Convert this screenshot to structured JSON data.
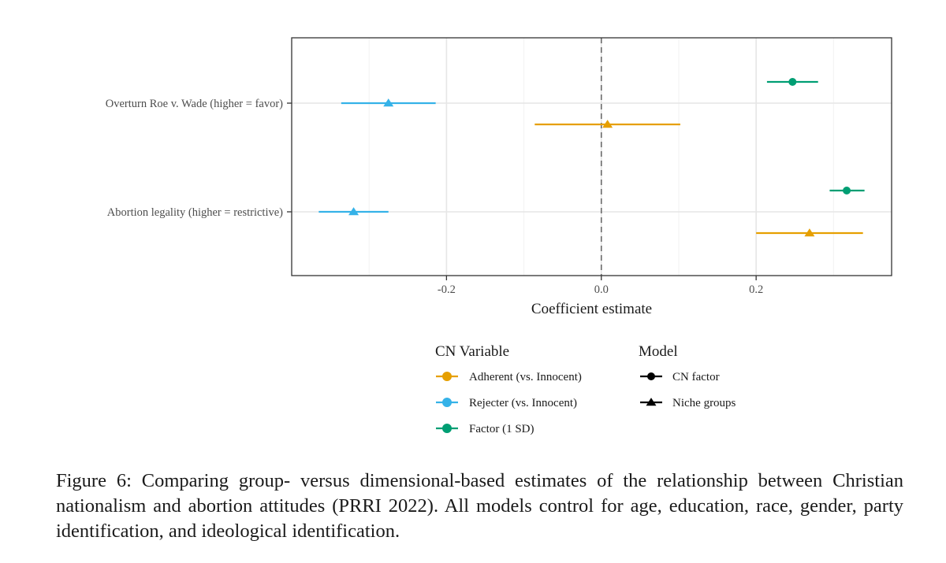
{
  "chart_data": {
    "type": "scatter",
    "subtype": "coefficient-plot",
    "xlabel": "Coefficient estimate",
    "ylabel": "",
    "xlim": [
      -0.4,
      0.375
    ],
    "x_ticks": [
      -0.2,
      0.0,
      0.2
    ],
    "x_tick_labels": [
      "-0.2",
      "0.0",
      "0.2"
    ],
    "categories": [
      "Overturn Roe v. Wade (higher = favor)",
      "Abortion legality (higher = restrictive)"
    ],
    "reference_line": 0,
    "grid": true,
    "legend_position": "bottom",
    "series": [
      {
        "name": "Adherent (vs. Innocent)",
        "color": "#E69F00",
        "shape": "triangle",
        "model": "Niche groups",
        "points": [
          {
            "category": "Overturn Roe v. Wade (higher = favor)",
            "estimate": 0.008,
            "low": -0.086,
            "high": 0.102
          },
          {
            "category": "Abortion legality (higher = restrictive)",
            "estimate": 0.269,
            "low": 0.2,
            "high": 0.338
          }
        ]
      },
      {
        "name": "Rejecter (vs. Innocent)",
        "color": "#35B2E8",
        "shape": "triangle",
        "model": "Niche groups",
        "points": [
          {
            "category": "Overturn Roe v. Wade (higher = favor)",
            "estimate": -0.275,
            "low": -0.336,
            "high": -0.214
          },
          {
            "category": "Abortion legality (higher = restrictive)",
            "estimate": -0.32,
            "low": -0.365,
            "high": -0.275
          }
        ]
      },
      {
        "name": "Factor (1 SD)",
        "color": "#009E73",
        "shape": "circle",
        "model": "CN factor",
        "points": [
          {
            "category": "Overturn Roe v. Wade (higher = favor)",
            "estimate": 0.247,
            "low": 0.214,
            "high": 0.28
          },
          {
            "category": "Abortion legality (higher = restrictive)",
            "estimate": 0.317,
            "low": 0.295,
            "high": 0.34
          }
        ]
      }
    ],
    "legend": {
      "color_title": "CN Variable",
      "shape_title": "Model",
      "shape_items": [
        {
          "label": "CN factor",
          "shape": "circle"
        },
        {
          "label": "Niche groups",
          "shape": "triangle"
        }
      ]
    }
  },
  "caption": "Figure 6: Comparing group- versus dimensional-based estimates of the relationship between Christian nationalism and abortion attitudes (PRRI 2022). All models control for age, education, race, gender, party identification, and ideological identification."
}
